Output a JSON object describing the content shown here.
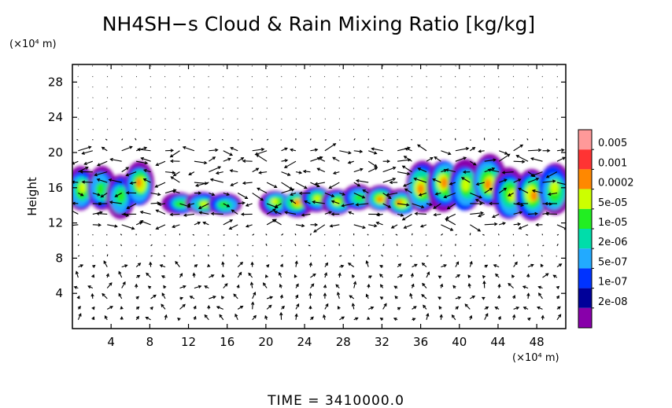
{
  "chart_data": {
    "type": "heatmap",
    "title": "NH4SH−s Cloud & Rain Mixing Ratio [kg/kg]",
    "ylabel": "Height",
    "xunit": "(×10⁴ m)",
    "yunit": "(×10⁴ m)",
    "xlim": [
      0,
      51
    ],
    "ylim": [
      0,
      30
    ],
    "xticks": [
      4,
      8,
      12,
      16,
      20,
      24,
      28,
      32,
      36,
      40,
      44,
      48
    ],
    "yticks": [
      4,
      8,
      12,
      16,
      20,
      24,
      28
    ],
    "colorbar": {
      "labels": [
        "0.005",
        "0.001",
        "0.0002",
        "5e-05",
        "1e-05",
        "2e-06",
        "5e-07",
        "1e-07",
        "2e-08"
      ],
      "colors": [
        "#ff9999",
        "#ff3333",
        "#ff8800",
        "#ccff00",
        "#22ee22",
        "#00ddaa",
        "#22aaff",
        "#0033ff",
        "#000099",
        "#8800aa"
      ]
    },
    "cloud_patches": [
      {
        "x0": 0,
        "x1": 8,
        "y0": 12.5,
        "y1": 18.5,
        "peak": 0.0002
      },
      {
        "x0": 10,
        "x1": 17,
        "y0": 12.5,
        "y1": 15.5,
        "peak": 0.0002
      },
      {
        "x0": 20,
        "x1": 35,
        "y0": 12.5,
        "y1": 16,
        "peak": 0.0002
      },
      {
        "x0": 35,
        "x1": 51,
        "y0": 12,
        "y1": 19,
        "peak": 0.0002
      }
    ],
    "vectors": "wind field overlay (arrows)",
    "time_label": "TIME  =  3410000.0"
  }
}
